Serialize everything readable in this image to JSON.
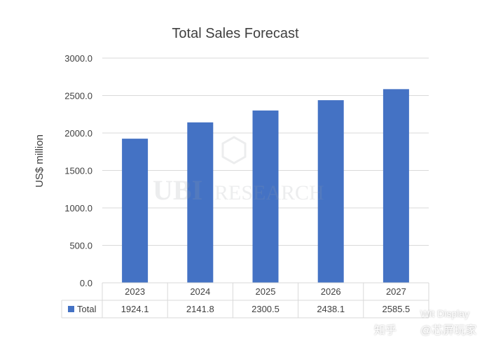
{
  "chart_data": {
    "type": "bar",
    "title": "Total Sales Forecast",
    "ylabel": "US$ million",
    "xlabel": "",
    "ylim": [
      0,
      3000
    ],
    "yticks": [
      "0.0",
      "500.0",
      "1000.0",
      "1500.0",
      "2000.0",
      "2500.0",
      "3000.0"
    ],
    "categories": [
      "2023",
      "2024",
      "2025",
      "2026",
      "2027"
    ],
    "series": [
      {
        "name": "Total",
        "values": [
          1924.1,
          2141.8,
          2300.5,
          2438.1,
          2585.5
        ],
        "labels": [
          "1924.1",
          "2141.8",
          "2300.5",
          "2438.1",
          "2585.5"
        ],
        "color": "#4472C4"
      }
    ],
    "grid": true,
    "legend_placement": "data-table-left"
  },
  "watermark": {
    "logo_text": "UBI RESEARCH",
    "bottom_left": "知乎",
    "bottom_right": "@芯屏玩家",
    "overlay": "Wit Display"
  },
  "colors": {
    "bar": "#4472C4",
    "grid": "#D9D9D9",
    "text": "#404040"
  }
}
